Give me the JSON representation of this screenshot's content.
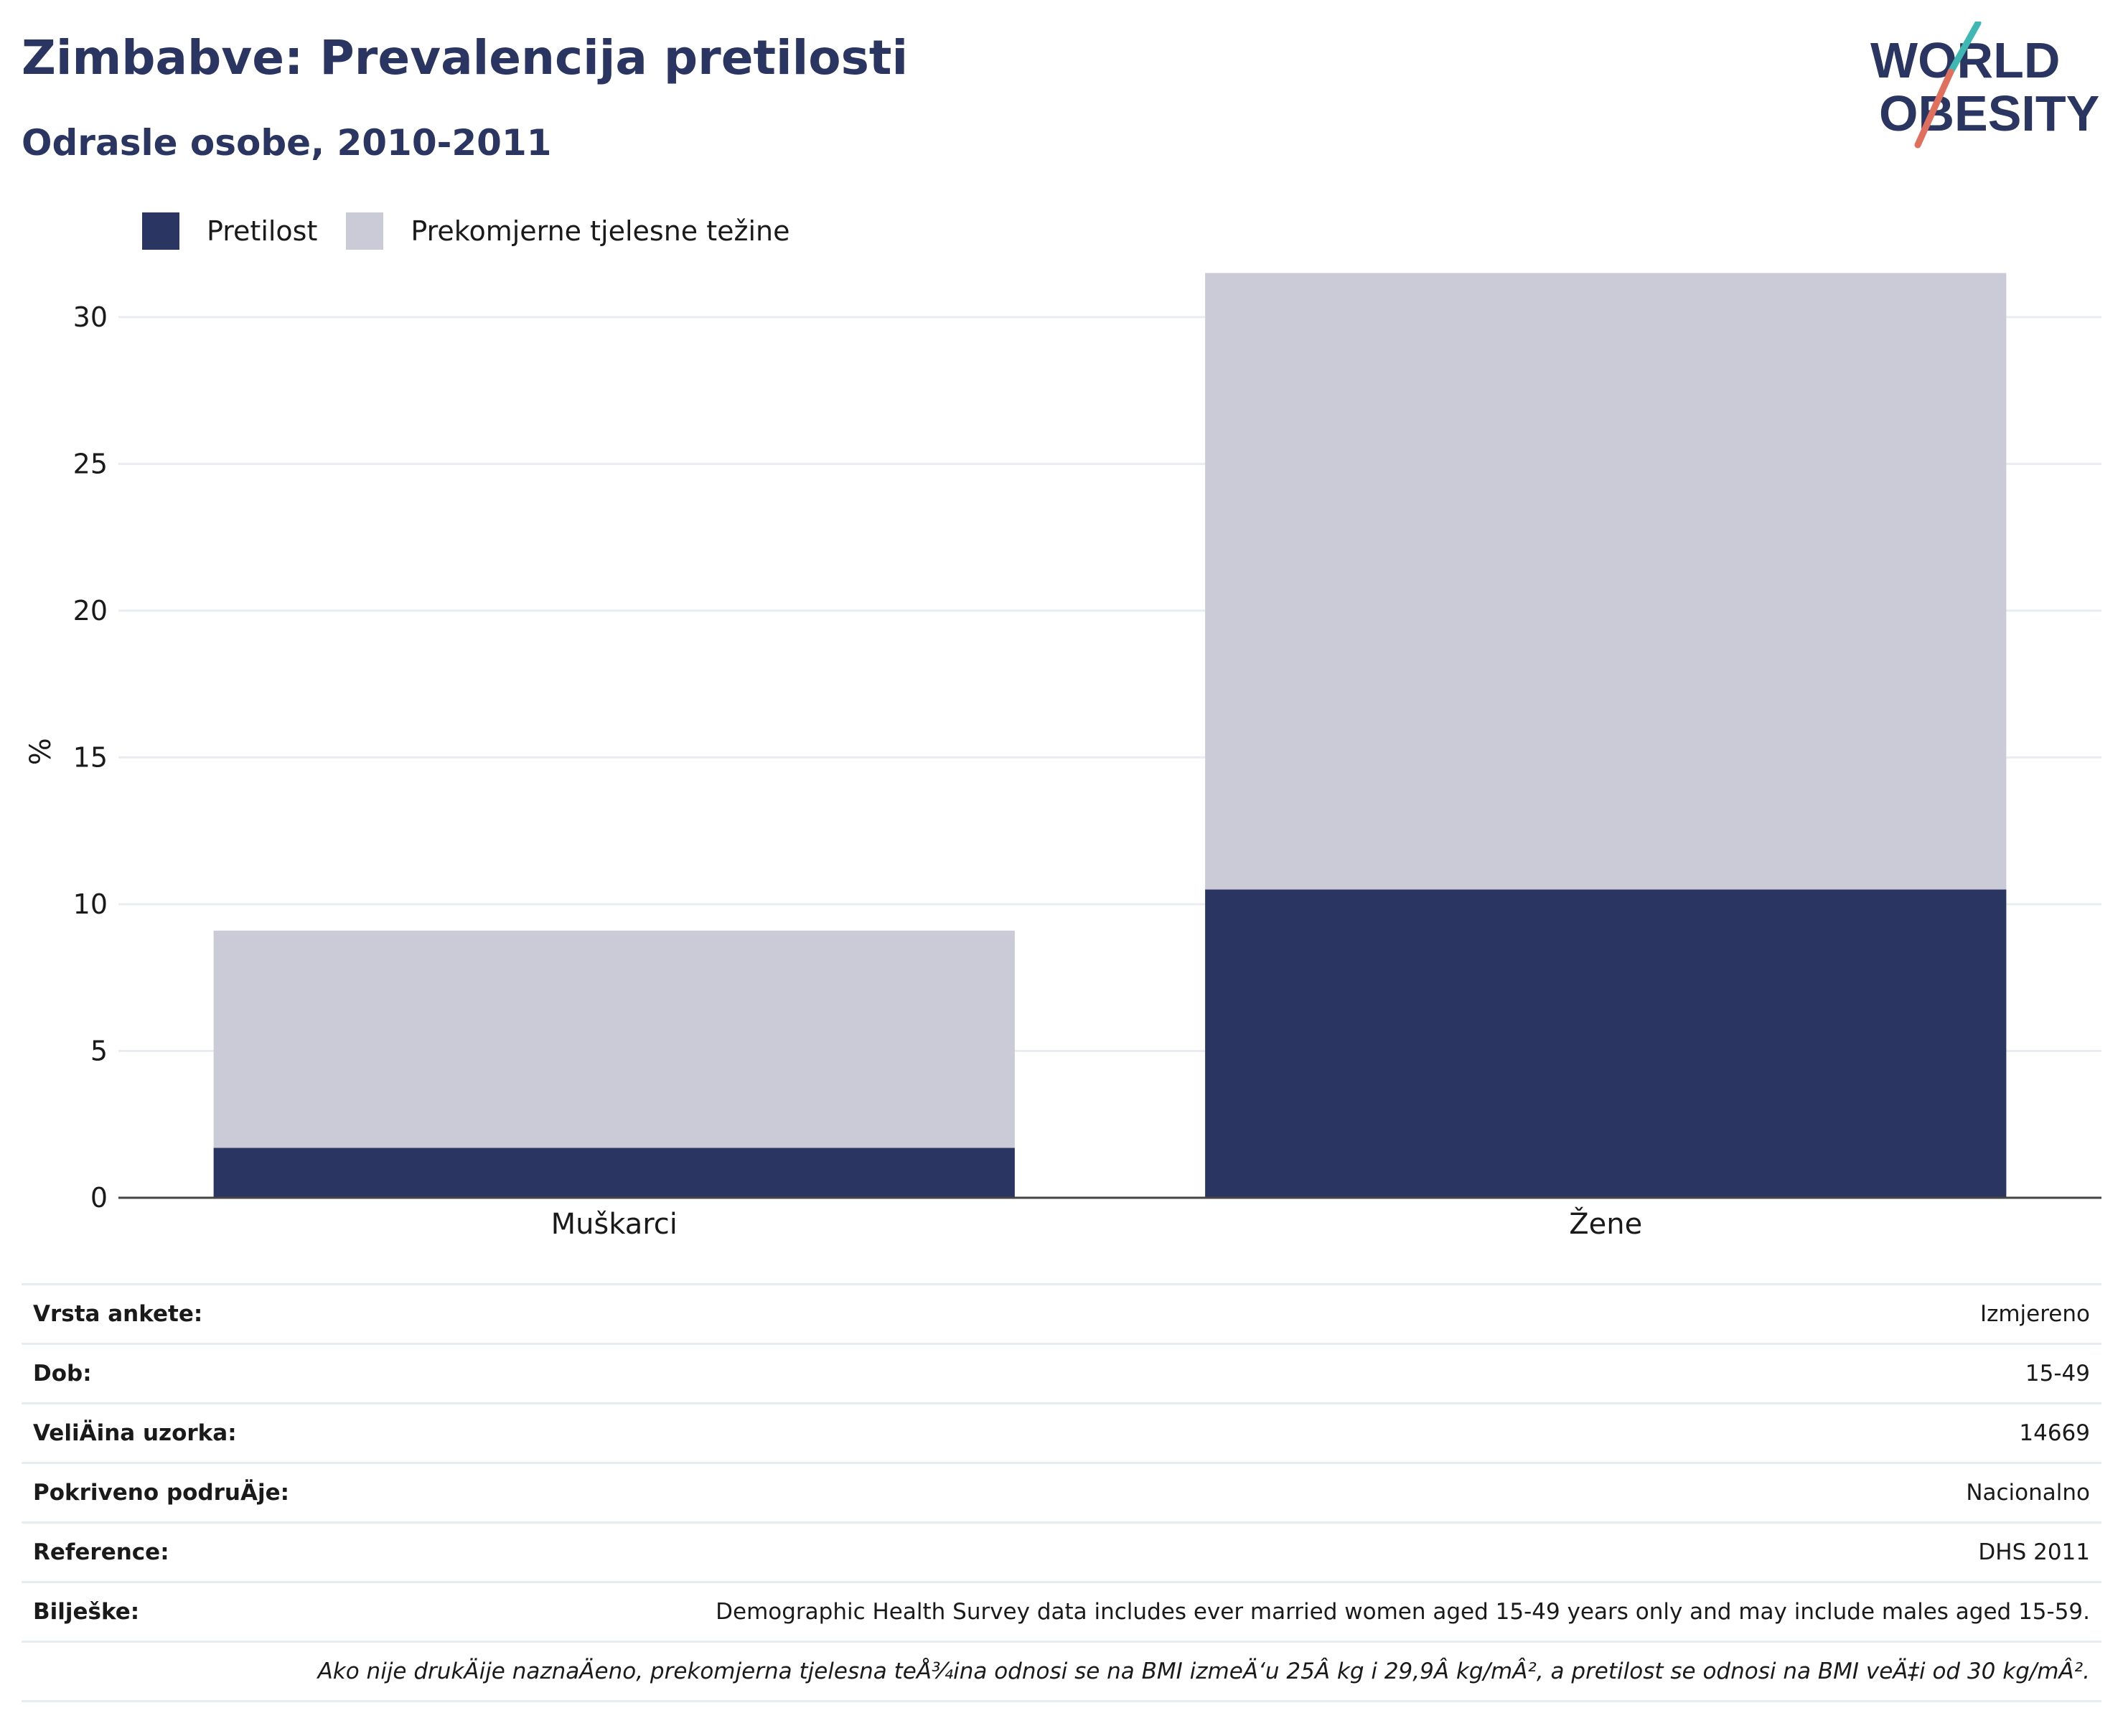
{
  "header": {
    "title": "Zimbabve: Prevalencija pretilosti",
    "subtitle": "Odrasle osobe, 2010-2011"
  },
  "logo": {
    "line1": "WORLD",
    "line2": "OBESITY",
    "colors": [
      "#2a3562",
      "#e06f5e",
      "#3fb8b4"
    ]
  },
  "legend": {
    "items": [
      {
        "label": "Pretilost",
        "color": "#2a3562"
      },
      {
        "label": "Prekomjerne tjelesne težine",
        "color": "#cacbd7"
      }
    ]
  },
  "chart_data": {
    "type": "bar",
    "stacked": true,
    "categories": [
      "Muškarci",
      "Žene"
    ],
    "series": [
      {
        "name": "Pretilost",
        "values": [
          1.7,
          10.5
        ],
        "color": "#2a3562"
      },
      {
        "name": "Prekomjerne tjelesne težine",
        "values": [
          7.4,
          21.0
        ],
        "color": "#cacbd7"
      }
    ],
    "ylabel": "%",
    "ylim": [
      0,
      32
    ],
    "yticks": [
      0,
      5,
      10,
      15,
      20,
      25,
      30
    ],
    "grid": true,
    "legend_position": "top-left"
  },
  "info_table": {
    "rows": [
      {
        "label": "Vrsta ankete:",
        "value": "Izmjereno"
      },
      {
        "label": "Dob:",
        "value": "15-49"
      },
      {
        "label": "VeliÄ\u001dina uzorka:",
        "value": "14669"
      },
      {
        "label": "Pokriveno podruÄ\u001dje:",
        "value": "Nacionalno"
      },
      {
        "label": "Reference:",
        "value": "DHS 2011"
      },
      {
        "label": "Bilješke:",
        "value": "Demographic Health Survey data includes ever married women aged 15-49 years only and may include males aged 15-59."
      }
    ],
    "note": "Ako nije drukÄ\u001dije naznaÄ\u001deno, prekomjerna tjelesna teÅ¾ina odnosi se na BMI izmeÄ‘u 25Â kg i 29,9Â kg/mÂ², a pretilost se odnosi na BMI veÄ‡i od 30 kg/mÂ²."
  }
}
